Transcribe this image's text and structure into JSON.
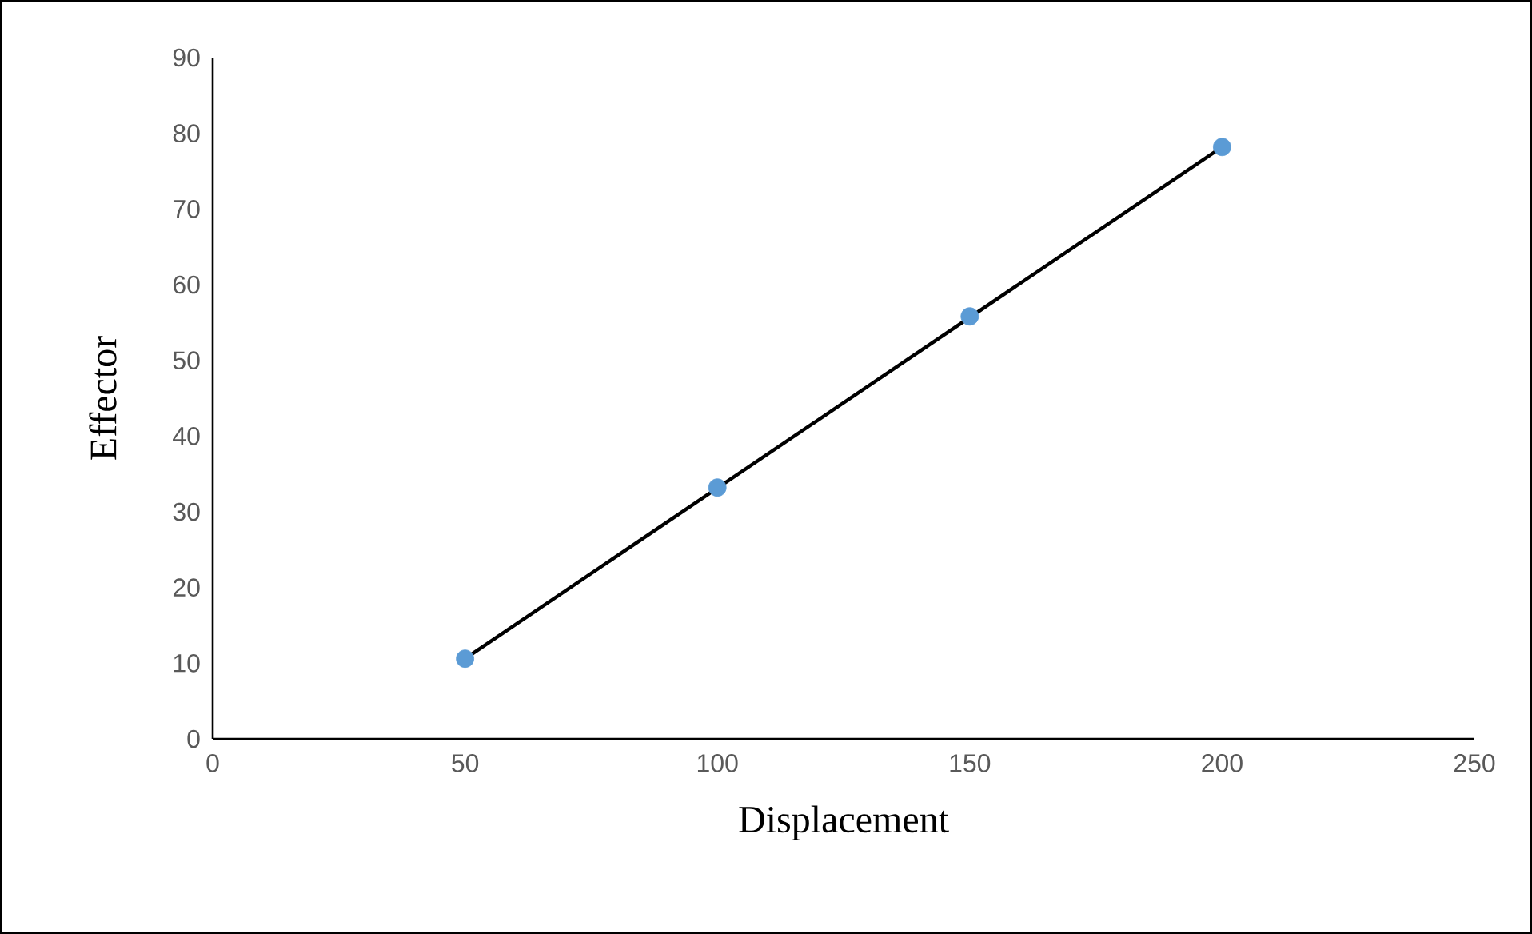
{
  "chart_data": {
    "type": "scatter",
    "xlabel": "Displacement",
    "ylabel": "Effector",
    "xlim": [
      0,
      250
    ],
    "xticks": [
      0,
      50,
      100,
      150,
      200,
      250
    ],
    "ylim": [
      0,
      90
    ],
    "yticks": [
      0,
      10,
      20,
      30,
      40,
      50,
      60,
      70,
      80,
      90
    ],
    "grid": false,
    "series": [
      {
        "type": "line",
        "color": "#000000",
        "x": [
          50,
          200
        ],
        "values": [
          10.6,
          78.2
        ],
        "line_style": "solid"
      },
      {
        "color": "#5b9bd5",
        "x": [
          50,
          100,
          150,
          200
        ],
        "values": [
          10.6,
          33.2,
          55.8,
          78.2
        ],
        "marker": "circle"
      }
    ]
  }
}
